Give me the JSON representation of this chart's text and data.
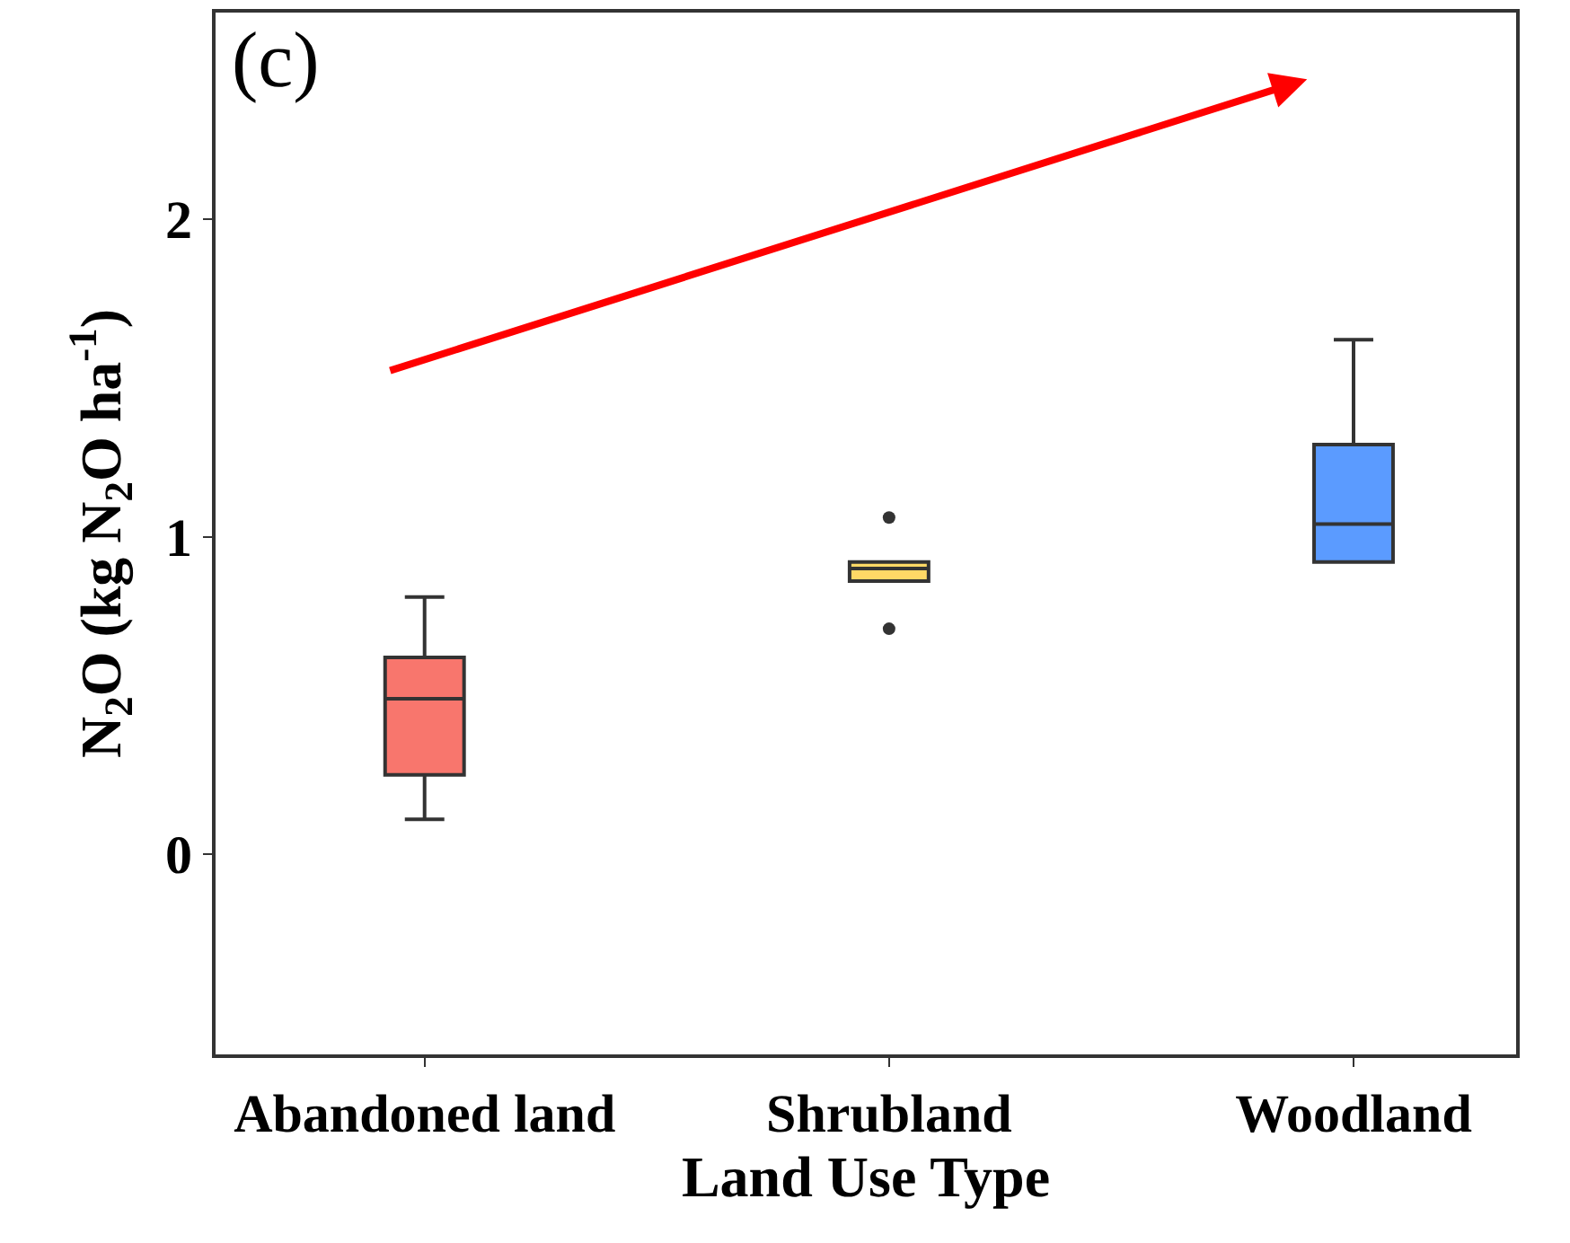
{
  "chart_data": {
    "type": "box",
    "xlabel": "Land Use Type",
    "ylabel": "N$_{2}$O (kg N$_{2}$O ha$^{-1}$)",
    "annotations": [
      "(c)"
    ],
    "categories": [
      "Abandoned land",
      "Shrubland",
      "Woodland"
    ],
    "colors": [
      "#f8766d",
      "#ffd966",
      "#5b9bff"
    ],
    "boxes": [
      {
        "low": 0.11,
        "q1": 0.25,
        "median": 0.49,
        "q3": 0.62,
        "high": 0.81
      },
      {
        "low": 0.86,
        "q1": 0.86,
        "median": 0.9,
        "q3": 0.92,
        "high": 0.92,
        "outliers": [
          1.06,
          0.71
        ]
      },
      {
        "low": 0.92,
        "q1": 0.92,
        "median": 1.04,
        "q3": 1.29,
        "high": 1.62
      }
    ],
    "ylim": [
      -0.63,
      2.65
    ],
    "yticks": [
      0,
      1,
      2
    ]
  }
}
